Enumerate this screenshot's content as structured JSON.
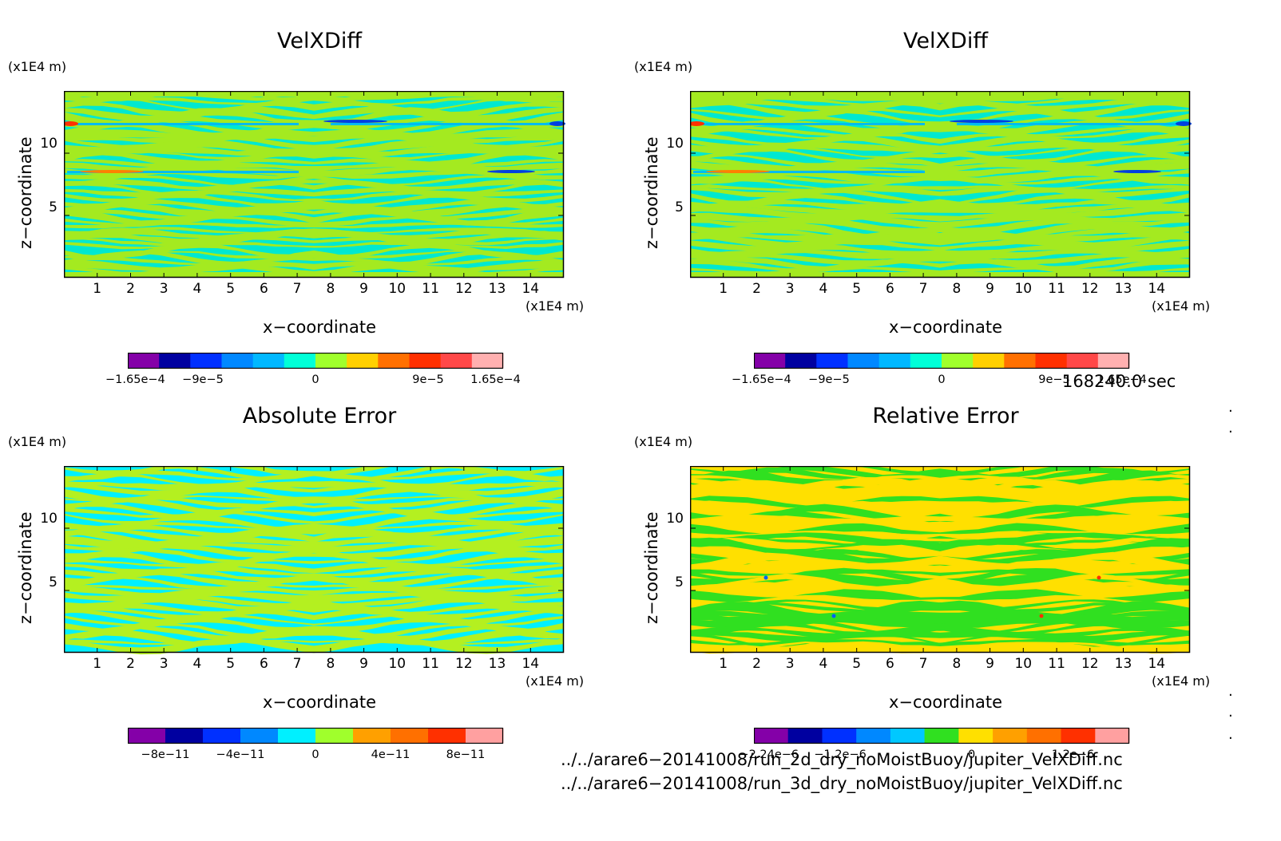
{
  "panels": [
    {
      "title": "VelXDiff",
      "y_unit": "(x1E4 m)",
      "x_unit": "(x1E4 m)",
      "ylabel": "z−coordinate",
      "xlabel": "x−coordinate",
      "yticks": [
        "5",
        "10"
      ],
      "xticks": [
        "1",
        "2",
        "3",
        "4",
        "5",
        "6",
        "7",
        "8",
        "9",
        "10",
        "11",
        "12",
        "13",
        "14"
      ],
      "colorbar": {
        "colors": [
          "#8400a8",
          "#0000a0",
          "#0030ff",
          "#0088ff",
          "#00b8ff",
          "#00ffd8",
          "#a0ff2c",
          "#ffd000",
          "#ff7000",
          "#ff3000",
          "#ff4848",
          "#ffb0b0"
        ],
        "ticks": [
          "−1.65e−4",
          "−9e−5",
          "0",
          "9e−5",
          "1.65e−4"
        ]
      },
      "field": {
        "colors": [
          "#00e8d0",
          "#a4ea20",
          "#00bcf0",
          "#ff8000",
          "#ff3000",
          "#0040e0"
        ]
      }
    },
    {
      "title": "VelXDiff",
      "y_unit": "(x1E4 m)",
      "x_unit": "(x1E4 m)",
      "ylabel": "z−coordinate",
      "xlabel": "x−coordinate",
      "yticks": [
        "5",
        "10"
      ],
      "xticks": [
        "1",
        "2",
        "3",
        "4",
        "5",
        "6",
        "7",
        "8",
        "9",
        "10",
        "11",
        "12",
        "13",
        "14"
      ],
      "colorbar": {
        "colors": [
          "#8400a8",
          "#0000a0",
          "#0030ff",
          "#0088ff",
          "#00b8ff",
          "#00ffd8",
          "#a0ff2c",
          "#ffd000",
          "#ff7000",
          "#ff3000",
          "#ff4848",
          "#ffb0b0"
        ],
        "ticks": [
          "−1.65e−4",
          "−9e−5",
          "0",
          "9e−5",
          "1.65e−4"
        ]
      },
      "field": {
        "colors": [
          "#00e8d0",
          "#a4ea20",
          "#00bcf0",
          "#ff8000",
          "#ff3000",
          "#0040e0"
        ]
      }
    },
    {
      "title": "Absolute Error",
      "y_unit": "(x1E4 m)",
      "x_unit": "(x1E4 m)",
      "ylabel": "z−coordinate",
      "xlabel": "x−coordinate",
      "yticks": [
        "5",
        "10"
      ],
      "xticks": [
        "1",
        "2",
        "3",
        "4",
        "5",
        "6",
        "7",
        "8",
        "9",
        "10",
        "11",
        "12",
        "13",
        "14"
      ],
      "colorbar": {
        "colors": [
          "#8400a8",
          "#0000a0",
          "#0030ff",
          "#0088ff",
          "#00f0ff",
          "#a0ff2c",
          "#ffa000",
          "#ff7000",
          "#ff3000",
          "#ffa0a0"
        ],
        "ticks": [
          "−8e−11",
          "−4e−11",
          "0",
          "4e−11",
          "8e−11"
        ]
      },
      "field": {
        "colors": [
          "#00f0ff",
          "#b4f020"
        ]
      }
    },
    {
      "title": "Relative Error",
      "y_unit": "(x1E4 m)",
      "x_unit": "(x1E4 m)",
      "ylabel": "z−coordinate",
      "xlabel": "x−coordinate",
      "yticks": [
        "5",
        "10"
      ],
      "xticks": [
        "1",
        "2",
        "3",
        "4",
        "5",
        "6",
        "7",
        "8",
        "9",
        "10",
        "11",
        "12",
        "13",
        "14"
      ],
      "colorbar": {
        "colors": [
          "#8400a8",
          "#0000a0",
          "#0030ff",
          "#0088ff",
          "#00c8ff",
          "#30e020",
          "#ffe000",
          "#ffa000",
          "#ff7000",
          "#ff3000",
          "#ffa0a0"
        ],
        "ticks": [
          "−2.24e−6",
          "−1.2e−6",
          "0",
          "1.2e−6"
        ]
      },
      "field": {
        "colors": [
          "#ffe000",
          "#30e020",
          "#0060ff",
          "#ff3000"
        ]
      }
    }
  ],
  "timestamp": "168240.0 sec",
  "files": [
    "../../arare6−20141008/run_2d_dry_noMoistBuoy/jupiter_VelXDiff.nc",
    "../../arare6−20141008/run_3d_dry_noMoistBuoy/jupiter_VelXDiff.nc"
  ],
  "chart_data": [
    {
      "type": "heatmap",
      "title": "VelXDiff",
      "xlabel": "x−coordinate",
      "ylabel": "z−coordinate",
      "x_unit": "(x1E4 m)",
      "y_unit": "(x1E4 m)",
      "xlim": [
        0,
        15
      ],
      "ylim": [
        0,
        15
      ],
      "color_range": [
        -0.000165,
        0.000165
      ],
      "colorbar_ticks": [
        -0.000165,
        -9e-05,
        0,
        9e-05,
        0.000165
      ]
    },
    {
      "type": "heatmap",
      "title": "VelXDiff",
      "xlabel": "x−coordinate",
      "ylabel": "z−coordinate",
      "x_unit": "(x1E4 m)",
      "y_unit": "(x1E4 m)",
      "xlim": [
        0,
        15
      ],
      "ylim": [
        0,
        15
      ],
      "color_range": [
        -0.000165,
        0.000165
      ],
      "colorbar_ticks": [
        -0.000165,
        -9e-05,
        0,
        9e-05,
        0.000165
      ]
    },
    {
      "type": "heatmap",
      "title": "Absolute Error",
      "xlabel": "x−coordinate",
      "ylabel": "z−coordinate",
      "x_unit": "(x1E4 m)",
      "y_unit": "(x1E4 m)",
      "xlim": [
        0,
        15
      ],
      "ylim": [
        0,
        15
      ],
      "color_range": [
        -1e-10,
        1e-10
      ],
      "colorbar_ticks": [
        -8e-11,
        -4e-11,
        0,
        4e-11,
        8e-11
      ]
    },
    {
      "type": "heatmap",
      "title": "Relative Error",
      "xlabel": "x−coordinate",
      "ylabel": "z−coordinate",
      "x_unit": "(x1E4 m)",
      "y_unit": "(x1E4 m)",
      "xlim": [
        0,
        15
      ],
      "ylim": [
        0,
        15
      ],
      "color_range": [
        -2.24e-06,
        2.24e-06
      ],
      "colorbar_ticks": [
        -2.24e-06,
        -1.2e-06,
        0,
        1.2e-06
      ]
    }
  ]
}
